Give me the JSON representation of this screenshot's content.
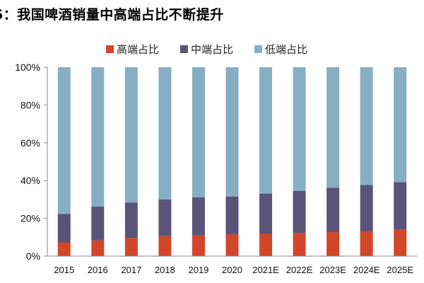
{
  "title": "6：我国啤酒销量中高端占比不断提升",
  "chart_data": {
    "type": "bar",
    "stacked": true,
    "title": "6：我国啤酒销量中高端占比不断提升",
    "xlabel": "",
    "ylabel": "",
    "ylim": [
      0,
      100
    ],
    "yticks": [
      0,
      20,
      40,
      60,
      80,
      100
    ],
    "ytick_labels": [
      "0%",
      "20%",
      "40%",
      "60%",
      "80%",
      "100%"
    ],
    "categories": [
      "2015",
      "2016",
      "2017",
      "2018",
      "2019",
      "2020",
      "2021E",
      "2022E",
      "2023E",
      "2024E",
      "2025E"
    ],
    "legend_position": "top-center",
    "series": [
      {
        "name": "高端占比",
        "color": "#d2462a",
        "values": [
          7.3,
          8.3,
          9.6,
          10.6,
          11.0,
          11.5,
          11.8,
          12.3,
          12.7,
          13.3,
          14.1
        ]
      },
      {
        "name": "中端占比",
        "color": "#5a5478",
        "values": [
          15.1,
          17.9,
          18.8,
          19.4,
          20.2,
          20.1,
          21.3,
          22.3,
          23.5,
          24.4,
          25.1
        ]
      },
      {
        "name": "低端占比",
        "color": "#86afc3",
        "values": [
          77.6,
          73.8,
          71.6,
          70.0,
          68.8,
          68.4,
          66.9,
          65.4,
          63.8,
          62.3,
          60.8
        ]
      }
    ]
  }
}
